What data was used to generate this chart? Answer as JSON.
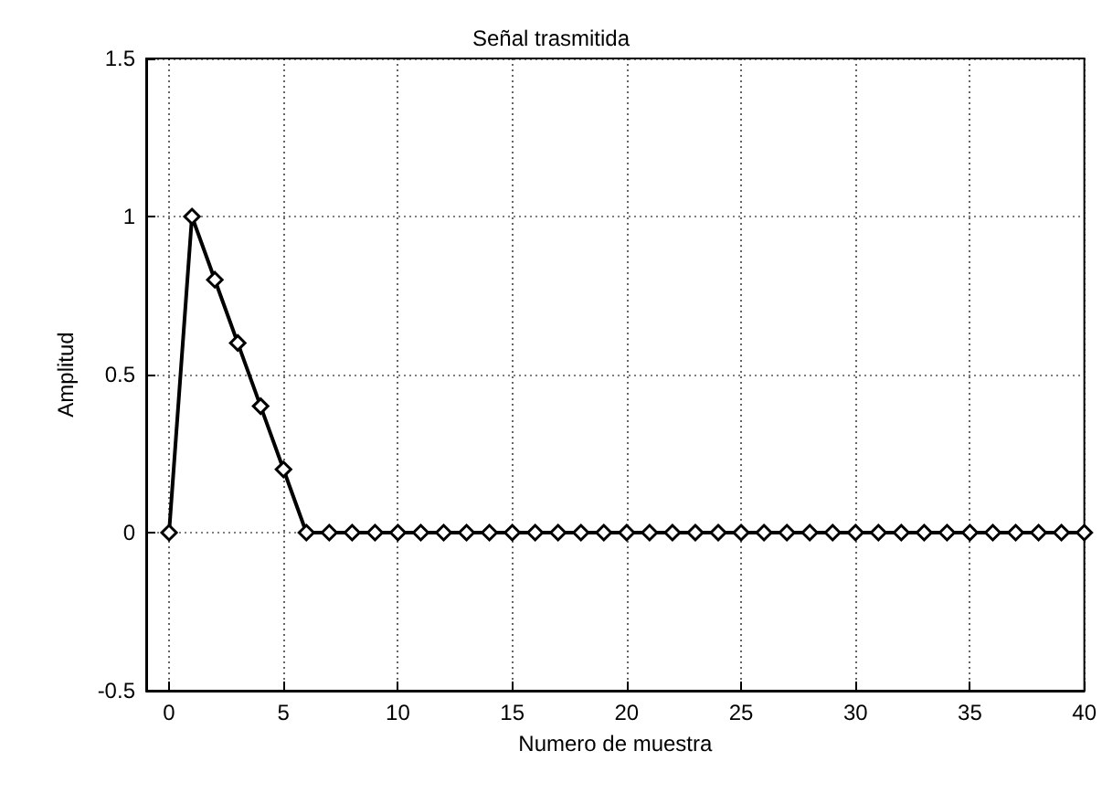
{
  "chart_data": {
    "type": "line",
    "title": "Señal trasmitida",
    "xlabel": "Numero de muestra",
    "ylabel": "Amplitud",
    "x": [
      0,
      1,
      2,
      3,
      4,
      5,
      6,
      7,
      8,
      9,
      10,
      11,
      12,
      13,
      14,
      15,
      16,
      17,
      18,
      19,
      20,
      21,
      22,
      23,
      24,
      25,
      26,
      27,
      28,
      29,
      30,
      31,
      32,
      33,
      34,
      35,
      36,
      37,
      38,
      39,
      40
    ],
    "series": [
      {
        "color": "#000000",
        "values": [
          0,
          1,
          0.8,
          0.6,
          0.4,
          0.2,
          0,
          0,
          0,
          0,
          0,
          0,
          0,
          0,
          0,
          0,
          0,
          0,
          0,
          0,
          0,
          0,
          0,
          0,
          0,
          0,
          0,
          0,
          0,
          0,
          0,
          0,
          0,
          0,
          0,
          0,
          0,
          0,
          0,
          0,
          0
        ]
      }
    ],
    "xlim": [
      -1,
      40
    ],
    "xticks": [
      0,
      5,
      10,
      15,
      20,
      25,
      30,
      35,
      40
    ],
    "ylim": [
      -0.5,
      1.5
    ],
    "yticks": [
      -0.5,
      0,
      0.5,
      1,
      1.5
    ],
    "grid": true,
    "marker": "diamond",
    "line_style": "solid"
  }
}
